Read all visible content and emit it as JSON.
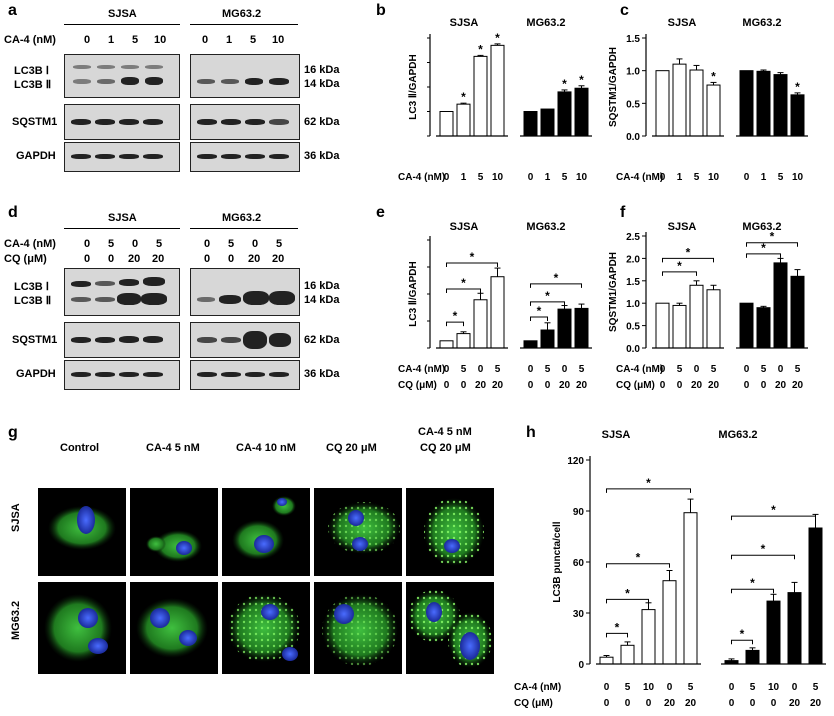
{
  "panels": {
    "a": "a",
    "b": "b",
    "c": "c",
    "d": "d",
    "e": "e",
    "f": "f",
    "g": "g",
    "h": "h"
  },
  "cells": {
    "sjsa": "SJSA",
    "mg": "MG63.2"
  },
  "western": {
    "ca4_label": "CA-4 (nM)",
    "ca4_cols": [
      "0",
      "1",
      "5",
      "10"
    ],
    "ca4_cols_d": [
      "0",
      "5",
      "0",
      "5"
    ],
    "cq_label": "CQ (μM)",
    "cq_cols_d": [
      "0",
      "0",
      "20",
      "20"
    ],
    "lc3b1": "LC3B Ⅰ",
    "lc3b2": "LC3B Ⅱ",
    "sqstm1": "SQSTM1",
    "gapdh": "GAPDH",
    "kda16": "16 kDa",
    "kda14": "14 kDa",
    "kda62": "62 kDa",
    "kda36": "36 kDa"
  },
  "micro": {
    "cols": [
      "Control",
      "CA-4 5 nM",
      "CA-4 10 nM",
      "CQ 20 μM",
      "CA-4 5 nM\nCQ 20 μM"
    ],
    "col5a": "CA-4 5 nM",
    "col5b": "CQ 20 μM",
    "rows": [
      "SJSA",
      "MG63.2"
    ]
  },
  "chart_data": [
    {
      "panel": "b",
      "type": "bar",
      "ylabel": "LC3 Ⅱ/GAPDH",
      "ylim": [
        0,
        4
      ],
      "yticks": [],
      "xaxis_rows": [
        {
          "label": "CA-4 (nM)",
          "values": [
            "0",
            "1",
            "5",
            "10",
            "0",
            "1",
            "5",
            "10"
          ]
        }
      ],
      "groups": [
        {
          "name": "SJSA",
          "fill": "#ffffff",
          "values": [
            1.0,
            1.3,
            3.25,
            3.7
          ],
          "err": [
            0,
            0.04,
            0.04,
            0.06
          ],
          "stars": [
            false,
            true,
            true,
            true
          ]
        },
        {
          "name": "MG63.2",
          "fill": "#000000",
          "values": [
            1.0,
            1.1,
            1.8,
            1.95
          ],
          "err": [
            0,
            0,
            0.08,
            0.1
          ],
          "stars": [
            false,
            false,
            true,
            true
          ]
        }
      ],
      "brackets": []
    },
    {
      "panel": "c",
      "type": "bar",
      "ylabel": "SQSTM1/GAPDH",
      "ylim": [
        0,
        1.5
      ],
      "yticks": [
        "0.0",
        "0.5",
        "1.0",
        "1.5"
      ],
      "xaxis_rows": [
        {
          "label": "CA-4 (nM)",
          "values": [
            "0",
            "1",
            "5",
            "10",
            "0",
            "1",
            "5",
            "10"
          ]
        }
      ],
      "groups": [
        {
          "name": "SJSA",
          "fill": "#ffffff",
          "values": [
            1.0,
            1.1,
            1.01,
            0.78
          ],
          "err": [
            0,
            0.08,
            0.07,
            0.04
          ],
          "stars": [
            false,
            false,
            false,
            true
          ]
        },
        {
          "name": "MG63.2",
          "fill": "#000000",
          "values": [
            1.0,
            0.99,
            0.94,
            0.63
          ],
          "err": [
            0,
            0.02,
            0.03,
            0.03
          ],
          "stars": [
            false,
            false,
            false,
            true
          ]
        }
      ],
      "brackets": []
    },
    {
      "panel": "e",
      "type": "bar",
      "ylabel": "LC3 Ⅱ/GAPDH",
      "ylim": [
        0,
        15
      ],
      "yticks": [],
      "xaxis_rows": [
        {
          "label": "CA-4 (nM)",
          "values": [
            "0",
            "5",
            "0",
            "5",
            "0",
            "5",
            "0",
            "5"
          ]
        },
        {
          "label": "CQ (μM)",
          "values": [
            "0",
            "0",
            "20",
            "20",
            "0",
            "0",
            "20",
            "20"
          ]
        }
      ],
      "groups": [
        {
          "name": "SJSA",
          "fill": "#ffffff",
          "values": [
            1.0,
            2.0,
            6.7,
            9.9
          ],
          "err": [
            0,
            0.25,
            0.9,
            1.2
          ],
          "stars": [
            false,
            false,
            false,
            false
          ]
        },
        {
          "name": "MG63.2",
          "fill": "#000000",
          "values": [
            1.0,
            2.5,
            5.4,
            5.5
          ],
          "err": [
            0,
            1.0,
            0.5,
            0.6
          ],
          "stars": [
            false,
            false,
            false,
            false
          ]
        }
      ],
      "brackets": [
        {
          "from": 0,
          "to": 1,
          "level": 3.6
        },
        {
          "from": 0,
          "to": 2,
          "level": 8.2
        },
        {
          "from": 0,
          "to": 3,
          "level": 11.8
        },
        {
          "from": 4,
          "to": 5,
          "level": 4.3
        },
        {
          "from": 4,
          "to": 6,
          "level": 6.4
        },
        {
          "from": 4,
          "to": 7,
          "level": 8.9
        }
      ]
    },
    {
      "panel": "f",
      "type": "bar",
      "ylabel": "SQSTM1/GAPDH",
      "ylim": [
        0,
        2.5
      ],
      "yticks": [
        "0.0",
        "0.5",
        "1.0",
        "1.5",
        "2.0",
        "2.5"
      ],
      "xaxis_rows": [
        {
          "label": "CA-4 (nM)",
          "values": [
            "0",
            "5",
            "0",
            "5",
            "0",
            "5",
            "0",
            "5"
          ]
        },
        {
          "label": "CQ (μM)",
          "values": [
            "0",
            "0",
            "20",
            "20",
            "0",
            "0",
            "20",
            "20"
          ]
        }
      ],
      "groups": [
        {
          "name": "SJSA",
          "fill": "#ffffff",
          "values": [
            1.0,
            0.95,
            1.4,
            1.3
          ],
          "err": [
            0,
            0.05,
            0.1,
            0.1
          ],
          "stars": [
            false,
            false,
            false,
            false
          ]
        },
        {
          "name": "MG63.2",
          "fill": "#000000",
          "values": [
            1.0,
            0.9,
            1.9,
            1.6
          ],
          "err": [
            0,
            0.03,
            0.1,
            0.15
          ],
          "stars": [
            false,
            false,
            false,
            false
          ]
        }
      ],
      "brackets": [
        {
          "from": 0,
          "to": 2,
          "level": 1.7
        },
        {
          "from": 0,
          "to": 3,
          "level": 2.0
        },
        {
          "from": 4,
          "to": 6,
          "level": 2.1
        },
        {
          "from": 4,
          "to": 7,
          "level": 2.35
        }
      ]
    },
    {
      "panel": "h",
      "type": "bar",
      "ylabel": "LC3B puncta/cell",
      "ylim": [
        0,
        120
      ],
      "yticks": [
        "0",
        "30",
        "60",
        "90",
        "120"
      ],
      "xaxis_rows": [
        {
          "label": "CA-4 (nM)",
          "values": [
            "0",
            "5",
            "10",
            "0",
            "5",
            "0",
            "5",
            "10",
            "0",
            "5"
          ]
        },
        {
          "label": "CQ (μM)",
          "values": [
            "0",
            "0",
            "0",
            "20",
            "20",
            "0",
            "0",
            "0",
            "20",
            "20"
          ]
        }
      ],
      "groups": [
        {
          "name": "SJSA",
          "fill": "#ffffff",
          "values": [
            4,
            11,
            32,
            49,
            89
          ],
          "err": [
            1,
            2,
            4,
            6,
            8
          ],
          "stars": [
            false,
            false,
            false,
            false,
            false
          ]
        },
        {
          "name": "MG63.2",
          "fill": "#000000",
          "values": [
            2,
            8,
            37,
            42,
            80
          ],
          "err": [
            1,
            1.5,
            4,
            6,
            8
          ],
          "stars": [
            false,
            false,
            false,
            false,
            false
          ]
        }
      ],
      "brackets": [
        {
          "from": 0,
          "to": 1,
          "level": 18
        },
        {
          "from": 0,
          "to": 2,
          "level": 38
        },
        {
          "from": 0,
          "to": 3,
          "level": 59
        },
        {
          "from": 0,
          "to": 4,
          "level": 103
        },
        {
          "from": 5,
          "to": 6,
          "level": 14
        },
        {
          "from": 5,
          "to": 7,
          "level": 44
        },
        {
          "from": 5,
          "to": 8,
          "level": 64
        },
        {
          "from": 5,
          "to": 9,
          "level": 87
        }
      ]
    }
  ]
}
